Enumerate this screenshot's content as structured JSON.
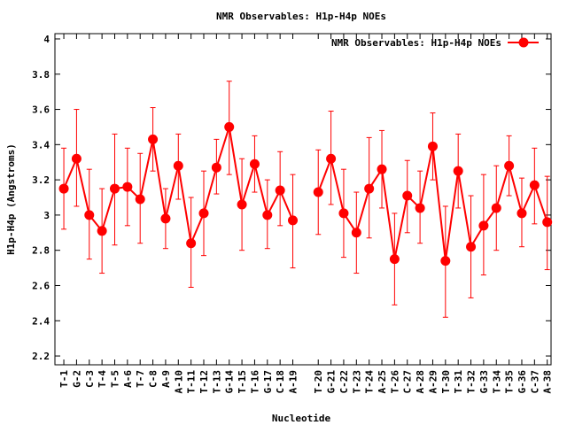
{
  "chart_data": {
    "type": "line",
    "title": "NMR Observables: H1p-H4p NOEs",
    "xlabel": "Nucleotide",
    "ylabel": "H1p-H4p (Angstroms)",
    "ylim": [
      2.15,
      4.03
    ],
    "yticks": [
      "4",
      "3.8",
      "3.6",
      "3.4",
      "3.2",
      "3",
      "2.8",
      "2.6",
      "2.4",
      "2.2"
    ],
    "ytick_values": [
      4,
      3.8,
      3.6,
      3.4,
      3.2,
      3.0,
      2.8,
      2.6,
      2.4,
      2.2
    ],
    "grid": false,
    "legend_position": "top-right",
    "color": "#ff0000",
    "categories": [
      "T-1",
      "G-2",
      "C-3",
      "T-4",
      "T-5",
      "A-6",
      "T-7",
      "C-8",
      "A-9",
      "A-10",
      "T-11",
      "T-12",
      "T-13",
      "G-14",
      "T-15",
      "T-16",
      "G-17",
      "C-18",
      "A-19",
      "T-20",
      "G-21",
      "C-22",
      "T-23",
      "T-24",
      "A-25",
      "T-26",
      "C-27",
      "A-28",
      "A-29",
      "T-30",
      "T-31",
      "T-32",
      "G-33",
      "T-34",
      "T-35",
      "G-36",
      "C-37",
      "A-38"
    ],
    "x": [
      1,
      2,
      3,
      4,
      5,
      6,
      7,
      8,
      9,
      10,
      11,
      12,
      13,
      14,
      15,
      16,
      17,
      18,
      19,
      21,
      22,
      23,
      24,
      25,
      26,
      27,
      28,
      29,
      30,
      31,
      32,
      33,
      34,
      35,
      36,
      37,
      38,
      39
    ],
    "series": [
      {
        "name": "NMR Observables: H1p-H4p NOEs",
        "segments": [
          [
            0,
            18
          ],
          [
            19,
            37
          ]
        ],
        "values": [
          3.15,
          3.32,
          3.0,
          2.91,
          3.15,
          3.16,
          3.09,
          3.43,
          2.98,
          3.28,
          2.84,
          3.01,
          3.27,
          3.5,
          3.06,
          3.29,
          3.0,
          3.14,
          2.97,
          3.13,
          3.32,
          3.01,
          2.9,
          3.15,
          3.26,
          2.75,
          3.11,
          3.04,
          3.39,
          2.74,
          3.25,
          2.82,
          2.94,
          3.04,
          3.28,
          3.01,
          3.17,
          2.96
        ],
        "err_low": [
          2.92,
          3.05,
          2.75,
          2.67,
          2.83,
          2.94,
          2.84,
          3.25,
          2.81,
          3.09,
          2.59,
          2.77,
          3.12,
          3.23,
          2.8,
          3.13,
          2.81,
          2.94,
          2.7,
          2.89,
          3.06,
          2.76,
          2.67,
          2.87,
          3.04,
          2.49,
          2.9,
          2.84,
          3.2,
          2.42,
          3.04,
          2.53,
          2.66,
          2.8,
          3.11,
          2.82,
          2.95,
          2.69
        ],
        "err_high": [
          3.38,
          3.6,
          3.26,
          3.15,
          3.46,
          3.38,
          3.35,
          3.61,
          3.15,
          3.46,
          3.1,
          3.25,
          3.43,
          3.76,
          3.32,
          3.45,
          3.2,
          3.36,
          3.23,
          3.37,
          3.59,
          3.26,
          3.13,
          3.44,
          3.48,
          3.01,
          3.31,
          3.25,
          3.58,
          3.05,
          3.46,
          3.11,
          3.23,
          3.28,
          3.45,
          3.21,
          3.38,
          3.22
        ]
      }
    ]
  }
}
